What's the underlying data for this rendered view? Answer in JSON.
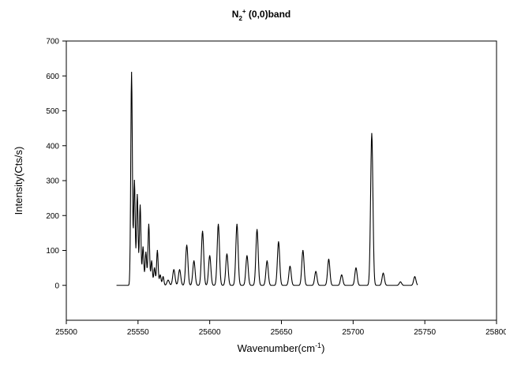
{
  "chart_data": {
    "type": "line",
    "title": {
      "main": "N",
      "sub": "2",
      "sup": "+",
      "rest": " (0,0)band"
    },
    "xlabel": {
      "main": "Wavenumber(cm",
      "sup": "-1",
      "rest": ")"
    },
    "ylabel": "Intensity(Cts/s)",
    "xlim": [
      25500,
      25800
    ],
    "ylim": [
      -100,
      700
    ],
    "x_ticks": [
      "25500",
      "25550",
      "25600",
      "25650",
      "25700",
      "25750",
      "25800"
    ],
    "y_ticks": [
      "0",
      "100",
      "200",
      "300",
      "400",
      "500",
      "600",
      "700"
    ],
    "grid": false,
    "baseline_range": [
      25535,
      25745
    ],
    "peaks": [
      {
        "x": 25545.5,
        "y": 610
      },
      {
        "x": 25547.5,
        "y": 300
      },
      {
        "x": 25549.5,
        "y": 260
      },
      {
        "x": 25551.5,
        "y": 230
      },
      {
        "x": 25553.5,
        "y": 110
      },
      {
        "x": 25555.5,
        "y": 95
      },
      {
        "x": 25557.5,
        "y": 175
      },
      {
        "x": 25559.5,
        "y": 70
      },
      {
        "x": 25561.5,
        "y": 50
      },
      {
        "x": 25563.5,
        "y": 100
      },
      {
        "x": 25565.5,
        "y": 30
      },
      {
        "x": 25567.5,
        "y": 25
      },
      {
        "x": 25571,
        "y": 15
      },
      {
        "x": 25575,
        "y": 45
      },
      {
        "x": 25579,
        "y": 45
      },
      {
        "x": 25584,
        "y": 115
      },
      {
        "x": 25589,
        "y": 70
      },
      {
        "x": 25595,
        "y": 155
      },
      {
        "x": 25600,
        "y": 85
      },
      {
        "x": 25606,
        "y": 175
      },
      {
        "x": 25612,
        "y": 90
      },
      {
        "x": 25619,
        "y": 175
      },
      {
        "x": 25626,
        "y": 85
      },
      {
        "x": 25633,
        "y": 160
      },
      {
        "x": 25640,
        "y": 70
      },
      {
        "x": 25648,
        "y": 125
      },
      {
        "x": 25656,
        "y": 55
      },
      {
        "x": 25665,
        "y": 100
      },
      {
        "x": 25674,
        "y": 40
      },
      {
        "x": 25683,
        "y": 75
      },
      {
        "x": 25692,
        "y": 30
      },
      {
        "x": 25702,
        "y": 50
      },
      {
        "x": 25713,
        "y": 435
      },
      {
        "x": 25721,
        "y": 35
      },
      {
        "x": 25733,
        "y": 10
      },
      {
        "x": 25743,
        "y": 25
      }
    ]
  }
}
